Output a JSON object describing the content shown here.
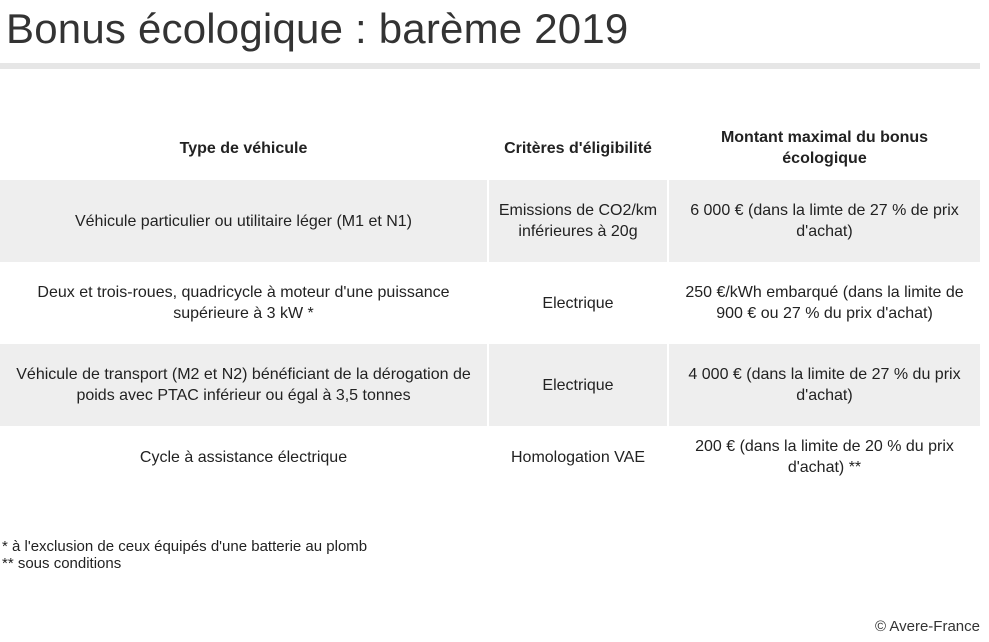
{
  "title": "Bonus écologique : barème 2019",
  "table": {
    "headers": [
      "Type de véhicule",
      "Critères d'éligibilité",
      "Montant maximal du bonus écologique"
    ],
    "rows": [
      {
        "type": "Véhicule particulier ou utilitaire léger (M1 et N1)",
        "criteria": "Emissions de CO2/km inférieures à 20g",
        "amount": "6 000 € (dans la limte de 27 % de prix d'achat)"
      },
      {
        "type": "Deux et trois-roues, quadricycle à moteur d'une puissance supérieure à 3 kW *",
        "criteria": "Electrique",
        "amount": "250 €/kWh embarqué (dans la limite de 900 € ou 27 % du prix d'achat)"
      },
      {
        "type": "Véhicule de transport (M2 et N2) bénéficiant de la dérogation de poids avec PTAC inférieur ou égal à 3,5 tonnes",
        "criteria": "Electrique",
        "amount": "4 000 € (dans la limite de 27 % du prix d'achat)"
      },
      {
        "type": "Cycle à assistance électrique",
        "criteria": "Homologation VAE",
        "amount": "200 € (dans la limite de 20 % du prix d'achat) **"
      }
    ]
  },
  "notes": [
    "* à l'exclusion de ceux équipés d'une batterie au plomb",
    "** sous conditions"
  ],
  "credit": "© Avere-France",
  "colors": {
    "row_shade": "#eeeeee",
    "rule": "#e6e6e6",
    "text": "#222222"
  }
}
